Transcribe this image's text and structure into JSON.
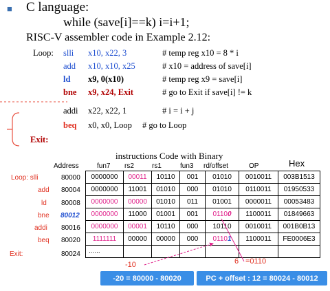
{
  "header": {
    "bullet": "■",
    "lang_line": "C language:",
    "c_code": "while (save[i]==k)  i=i+1;",
    "asm_title": "RISC-V assembler code in Example 2.12:"
  },
  "code": {
    "loop_label": "Loop:",
    "exit_label": "Exit:",
    "lines": [
      {
        "op": "slli",
        "args": "x10,  x22, 3",
        "comment": "# temp reg x10 =  8  *  i"
      },
      {
        "op": "add",
        "args": "x10, x10, x25",
        "comment": "# x10 =  address of save[i]"
      },
      {
        "op": "ld",
        "args": "x9, 0(x10)",
        "comment": "# temp reg x9  =  save[i]"
      },
      {
        "op": "bne",
        "args": "x9, x24, Exit",
        "comment": "# go to Exit  if  save[i]  !=  k"
      },
      {
        "op": "addi",
        "args": "x22, x22, 1",
        "comment": "#  i  =  i  +  j"
      },
      {
        "op": "beq",
        "args": "x0, x0, Loop",
        "comment": "# go to Loop"
      }
    ]
  },
  "table": {
    "title": "instructions Code with Binary",
    "headers": {
      "address": "Address",
      "fun7": "fun7",
      "rs2": "rs2",
      "rs1": "rs1",
      "fun3": "fun3",
      "rd": "rd/offset",
      "op": "OP",
      "hex": "Hex"
    },
    "row_labels": [
      "Loop:  slli",
      "add",
      "ld",
      "bne",
      "addi",
      "beq",
      "Exit:"
    ],
    "rows": [
      {
        "address": "80000",
        "fun7": "0000000",
        "rs2": "00011",
        "rs1": "10110",
        "fun3": "001",
        "rd": "01010",
        "op": "0010011",
        "hex": "003B1513"
      },
      {
        "address": "80004",
        "fun7": "0000000",
        "rs2": "11001",
        "rs1": "01010",
        "fun3": "000",
        "rd": "01010",
        "op": "0110011",
        "hex": "01950533"
      },
      {
        "address": "80008",
        "fun7": "0000000",
        "rs2": "00000",
        "rs1": "01010",
        "fun3": "011",
        "rd": "01001",
        "op": "0000011",
        "hex": "00053483"
      },
      {
        "address": "80012",
        "fun7": "0000000",
        "rs2": "11000",
        "rs1": "01001",
        "fun3": "001",
        "rd_a": "0110",
        "rd_b": "0",
        "op": "1100011",
        "hex": "01849663"
      },
      {
        "address": "80016",
        "fun7": "0000000",
        "rs2": "00001",
        "rs1": "10110",
        "fun3": "000",
        "rd": "10110",
        "op": "0010011",
        "hex": "001B0B13"
      },
      {
        "address": "80020",
        "fun7": "1111111",
        "rs2": "00000",
        "rs1": "00000",
        "fun3": "000",
        "rd_a": "0110",
        "rd_b": "1",
        "op": "1100011",
        "hex": "FE0006E3"
      }
    ],
    "exit_address": "80024",
    "exit_dots": "......"
  },
  "annotations": {
    "minus10": "-10",
    "six": "6",
    "eq0110": "=0110",
    "box_left": "-20 = 80000 - 80020",
    "box_right": "PC + offset  :  12 = 80024 - 80012"
  }
}
